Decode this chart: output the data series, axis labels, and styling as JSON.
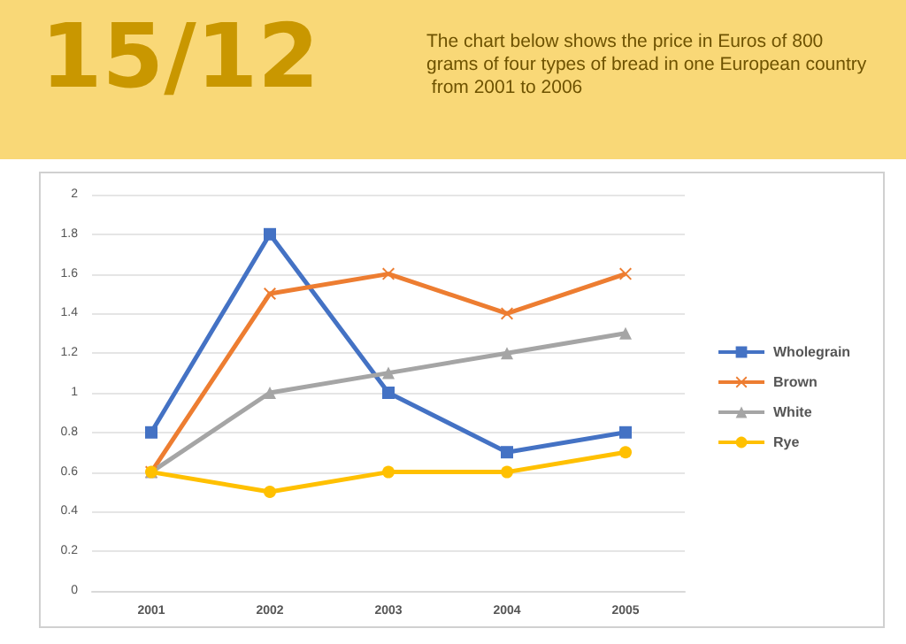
{
  "chart_data": {
    "type": "line",
    "title": "15/12",
    "subtitle": "The chart below shows the price in Euros of 800 grams of four types of bread in one European country from 2001 to 2006",
    "categories": [
      "2001",
      "2002",
      "2003",
      "2004",
      "2005"
    ],
    "series": [
      {
        "name": "Wholegrain",
        "color": "#4472c4",
        "marker": "square",
        "values": [
          0.8,
          1.8,
          1.0,
          0.7,
          0.8
        ]
      },
      {
        "name": "Brown",
        "color": "#ed7d31",
        "marker": "cross",
        "values": [
          0.6,
          1.5,
          1.6,
          1.4,
          1.6
        ]
      },
      {
        "name": "White",
        "color": "#a5a5a5",
        "marker": "triangle",
        "values": [
          0.6,
          1.0,
          1.1,
          1.2,
          1.3
        ]
      },
      {
        "name": "Rye",
        "color": "#ffc000",
        "marker": "circle",
        "values": [
          0.6,
          0.5,
          0.6,
          0.6,
          0.7
        ]
      }
    ],
    "ylim": [
      0,
      2
    ],
    "yticks": [
      0,
      0.2,
      0.4,
      0.6,
      0.8,
      1,
      1.2,
      1.4,
      1.6,
      1.8,
      2
    ],
    "grid": "y",
    "legend": "right"
  }
}
